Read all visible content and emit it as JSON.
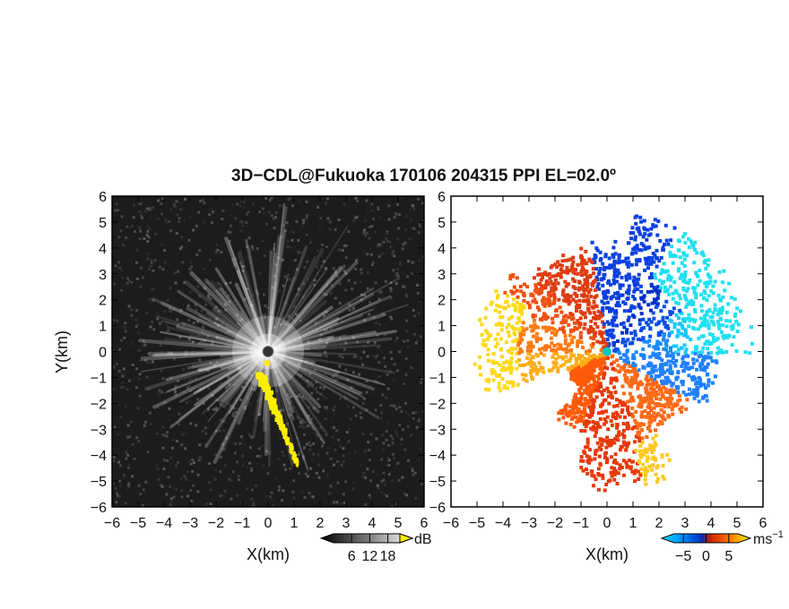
{
  "title": "3D−CDL@Fukuoka 170106 204315 PPI EL=02.0º",
  "chart_data": [
    {
      "type": "heatmap",
      "panel": "left",
      "quantity": "reflectivity",
      "xlabel": "X(km)",
      "ylabel": "Y(km)",
      "xlim": [
        -6,
        6
      ],
      "ylim": [
        -6,
        6
      ],
      "xticks": [
        "−6",
        "−5",
        "−4",
        "−3",
        "−2",
        "−1",
        "0",
        "1",
        "2",
        "3",
        "4",
        "5",
        "6"
      ],
      "yticks": [
        "6",
        "5",
        "4",
        "3",
        "2",
        "1",
        "0",
        "−1",
        "−2",
        "−3",
        "−4",
        "−5",
        "−6"
      ],
      "colorbar": {
        "unit": "dB",
        "ticks": [
          "6",
          "12",
          "18"
        ],
        "range": [
          0,
          22
        ],
        "colormap": "greyscale"
      },
      "background_color": "#1c1c1c",
      "highlight_color": "#ffee00",
      "highlight_feature": {
        "x_start": -0.3,
        "y_start": -0.8,
        "x_end": 1.15,
        "y_end": -4.3
      }
    },
    {
      "type": "heatmap",
      "panel": "right",
      "quantity": "radial velocity",
      "xlabel": "X(km)",
      "xlim": [
        -6,
        6
      ],
      "ylim": [
        -6,
        6
      ],
      "xticks": [
        "−6",
        "−5",
        "−4",
        "−3",
        "−2",
        "−1",
        "0",
        "1",
        "2",
        "3",
        "4",
        "5",
        "6"
      ],
      "yticks": [
        "6",
        "5",
        "4",
        "3",
        "2",
        "1",
        "0",
        "−1",
        "−2",
        "−3",
        "−4",
        "−5",
        "−6"
      ],
      "colorbar": {
        "unit": "ms",
        "unit_exponent": "−1",
        "ticks": [
          "−5",
          "0",
          "5"
        ],
        "range": [
          -7,
          7
        ],
        "colormap": "blue-cyan-red-yellow"
      },
      "negative_velocity_sector": "north-east",
      "positive_velocity_sector": "south-west"
    }
  ]
}
